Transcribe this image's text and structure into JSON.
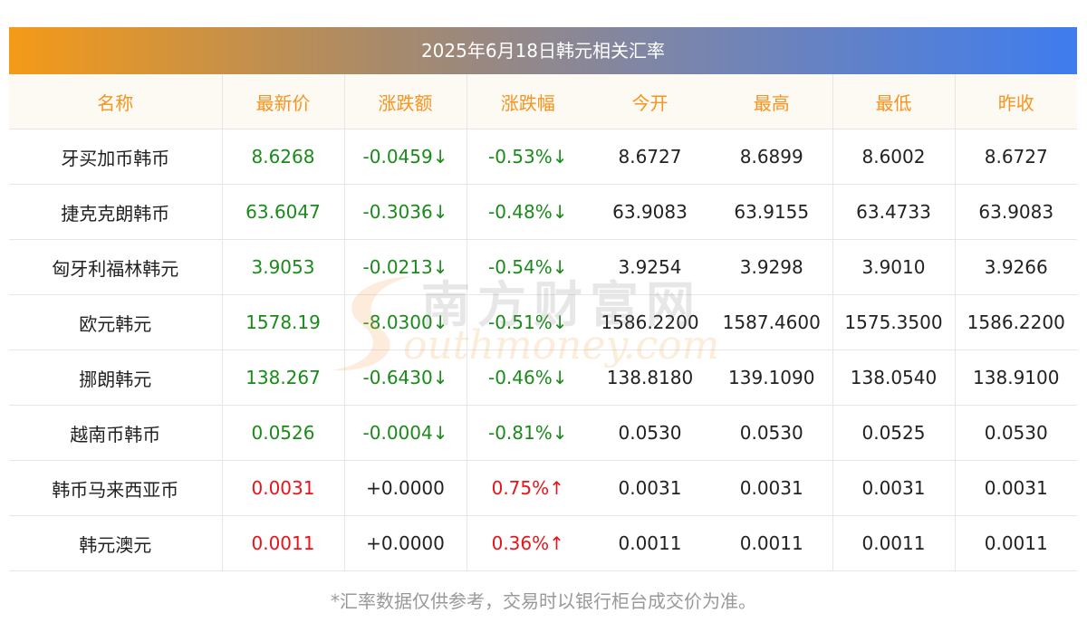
{
  "title": "2025年6月18日韩元相关汇率",
  "headers": [
    "名称",
    "最新价",
    "涨跌额",
    "涨跌幅",
    "今开",
    "最高",
    "最低",
    "昨收"
  ],
  "rows": [
    {
      "name": "牙买加币韩币",
      "latest": "8.6268",
      "change": "-0.0459↓",
      "pct": "-0.53%↓",
      "open": "8.6727",
      "high": "8.6899",
      "low": "8.6002",
      "prev": "8.6727",
      "trend": "down"
    },
    {
      "name": "捷克克朗韩币",
      "latest": "63.6047",
      "change": "-0.3036↓",
      "pct": "-0.48%↓",
      "open": "63.9083",
      "high": "63.9155",
      "low": "63.4733",
      "prev": "63.9083",
      "trend": "down"
    },
    {
      "name": "匈牙利福林韩元",
      "latest": "3.9053",
      "change": "-0.0213↓",
      "pct": "-0.54%↓",
      "open": "3.9254",
      "high": "3.9298",
      "low": "3.9010",
      "prev": "3.9266",
      "trend": "down"
    },
    {
      "name": "欧元韩元",
      "latest": "1578.19",
      "change": "-8.0300↓",
      "pct": "-0.51%↓",
      "open": "1586.2200",
      "high": "1587.4600",
      "low": "1575.3500",
      "prev": "1586.2200",
      "trend": "down"
    },
    {
      "name": "挪朗韩元",
      "latest": "138.267",
      "change": "-0.6430↓",
      "pct": "-0.46%↓",
      "open": "138.8180",
      "high": "139.1090",
      "low": "138.0540",
      "prev": "138.9100",
      "trend": "down"
    },
    {
      "name": "越南币韩币",
      "latest": "0.0526",
      "change": "-0.0004↓",
      "pct": "-0.81%↓",
      "open": "0.0530",
      "high": "0.0530",
      "low": "0.0525",
      "prev": "0.0530",
      "trend": "down"
    },
    {
      "name": "韩币马来西亚币",
      "latest": "0.0031",
      "change": "+0.0000",
      "pct": "0.75%↑",
      "open": "0.0031",
      "high": "0.0031",
      "low": "0.0031",
      "prev": "0.0031",
      "trend": "up"
    },
    {
      "name": "韩元澳元",
      "latest": "0.0011",
      "change": "+0.0000",
      "pct": "0.36%↑",
      "open": "0.0011",
      "high": "0.0011",
      "low": "0.0011",
      "prev": "0.0011",
      "trend": "up"
    }
  ],
  "watermark": {
    "cn": "南方财富网",
    "en": "outhmoney.com"
  },
  "footnote": "*汇率数据仅供参考，交易时以银行柜台成交价为准。",
  "colors": {
    "header_text": "#f7931e",
    "down": "#1a8a1a",
    "up": "#e8141a",
    "gradient_start": "#f49a17",
    "gradient_end": "#3f7cef"
  }
}
